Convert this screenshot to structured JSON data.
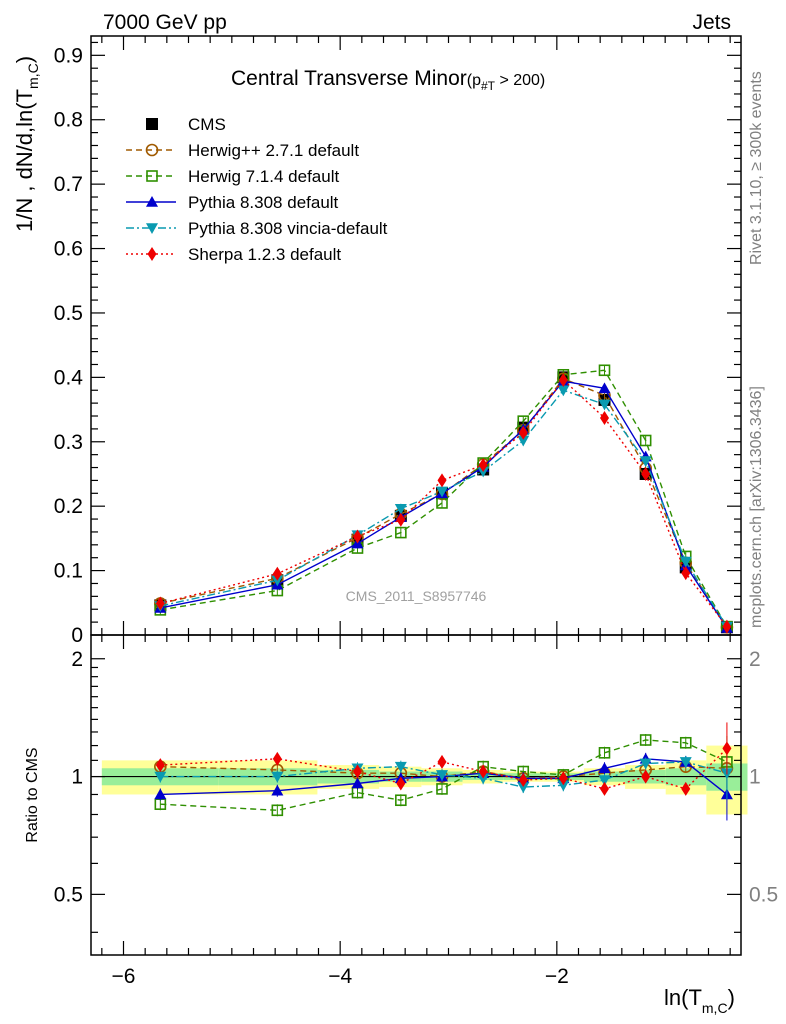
{
  "header": {
    "left": "7000 GeV pp",
    "right": "Jets"
  },
  "side_labels": {
    "rivet": "Rivet 3.1.10, ≥ 300k events",
    "mcplots": "mcplots.cern.ch [arXiv:1306.3436]"
  },
  "chart_data": [
    {
      "type": "line",
      "title": "Central Transverse Minor",
      "title_suffix": "(p",
      "title_sub": "#T",
      "title_tail": " > 200)",
      "ylabel": "1/N , dN/d,ln(T",
      "ylabel_sub": "m,C",
      "ylabel_tail": ")",
      "xlabel": "ln(T",
      "xlabel_sub": "m,C",
      "xlabel_tail": ")",
      "watermark": "CMS_2011_S8957746",
      "xlim": [
        -6.3,
        -0.3
      ],
      "ylim": [
        0,
        0.93
      ],
      "yticks": [
        "0",
        "0.1",
        "0.2",
        "0.3",
        "0.4",
        "0.5",
        "0.6",
        "0.7",
        "0.8",
        "0.9"
      ],
      "xticks": [
        "−6",
        "−4",
        "−2"
      ],
      "legend_position": "top-left",
      "x": [
        -5.66,
        -4.58,
        -3.84,
        -3.44,
        -3.06,
        -2.68,
        -2.31,
        -1.94,
        -1.56,
        -1.18,
        -0.81,
        -0.43
      ],
      "series": [
        {
          "name": "CMS",
          "color": "#000000",
          "marker": "square-filled",
          "line": "none",
          "values": [
            0.046,
            0.085,
            0.148,
            0.185,
            0.22,
            0.257,
            0.322,
            0.4,
            0.365,
            0.25,
            0.105,
            0.012
          ]
        },
        {
          "name": "Herwig++ 2.7.1 default",
          "color": "#a05a00",
          "marker": "circle-open",
          "line": "dashed",
          "values": [
            0.049,
            0.088,
            0.151,
            0.188,
            0.219,
            0.265,
            0.318,
            0.398,
            0.372,
            0.259,
            0.112,
            0.012
          ]
        },
        {
          "name": "Herwig 7.1.4 default",
          "color": "#2f8f00",
          "marker": "square-open",
          "line": "dashed",
          "values": [
            0.039,
            0.069,
            0.135,
            0.159,
            0.205,
            0.267,
            0.332,
            0.404,
            0.411,
            0.302,
            0.122,
            0.013
          ]
        },
        {
          "name": "Pythia 8.308 default",
          "color": "#0000cc",
          "marker": "triangle-up",
          "line": "solid",
          "values": [
            0.042,
            0.078,
            0.142,
            0.183,
            0.22,
            0.261,
            0.319,
            0.394,
            0.383,
            0.277,
            0.108,
            0.011
          ]
        },
        {
          "name": "Pythia 8.308 vincia-default",
          "color": "#0a9ab0",
          "marker": "triangle-down",
          "line": "dashdot",
          "values": [
            0.045,
            0.085,
            0.155,
            0.196,
            0.223,
            0.254,
            0.302,
            0.38,
            0.358,
            0.27,
            0.114,
            0.013
          ]
        },
        {
          "name": "Sherpa 1.2.3 default",
          "color": "#ee0000",
          "marker": "diamond",
          "line": "dotted",
          "values": [
            0.049,
            0.095,
            0.153,
            0.179,
            0.24,
            0.264,
            0.314,
            0.396,
            0.337,
            0.25,
            0.096,
            0.013
          ]
        }
      ]
    },
    {
      "type": "line",
      "ylabel": "Ratio to CMS",
      "ylim": [
        0.35,
        2.3
      ],
      "yscale": "log",
      "yticks": [
        "0.5",
        "1",
        "2"
      ],
      "yticks_right": [
        "0.5",
        "1",
        "2"
      ],
      "band_inner": [
        0.05,
        0.05,
        0.04,
        0.03,
        0.03,
        0.02,
        0.02,
        0.02,
        0.03,
        0.04,
        0.05,
        0.08
      ],
      "band_outer": [
        0.1,
        0.1,
        0.07,
        0.06,
        0.05,
        0.04,
        0.03,
        0.03,
        0.05,
        0.07,
        0.1,
        0.2
      ],
      "series": [
        {
          "name": "Herwig++ 2.7.1 default",
          "values": [
            1.06,
            1.04,
            1.02,
            1.02,
            1.0,
            1.03,
            0.99,
            1.0,
            1.02,
            1.04,
            1.06,
            1.05
          ]
        },
        {
          "name": "Herwig 7.1.4 default",
          "values": [
            0.85,
            0.82,
            0.91,
            0.87,
            0.93,
            1.06,
            1.03,
            1.01,
            1.15,
            1.24,
            1.22,
            1.09
          ]
        },
        {
          "name": "Pythia 8.308 default",
          "values": [
            0.9,
            0.92,
            0.96,
            0.99,
            1.0,
            1.02,
            0.99,
            0.99,
            1.05,
            1.11,
            1.09,
            0.9
          ]
        },
        {
          "name": "Pythia 8.308 vincia-default",
          "values": [
            1.0,
            1.0,
            1.05,
            1.06,
            1.01,
            0.99,
            0.94,
            0.95,
            0.98,
            1.08,
            1.09,
            1.02
          ]
        },
        {
          "name": "Sherpa 1.2.3 default",
          "values": [
            1.07,
            1.11,
            1.03,
            0.96,
            1.09,
            1.03,
            0.98,
            0.99,
            0.93,
            1.0,
            0.93,
            1.18
          ]
        }
      ]
    }
  ]
}
